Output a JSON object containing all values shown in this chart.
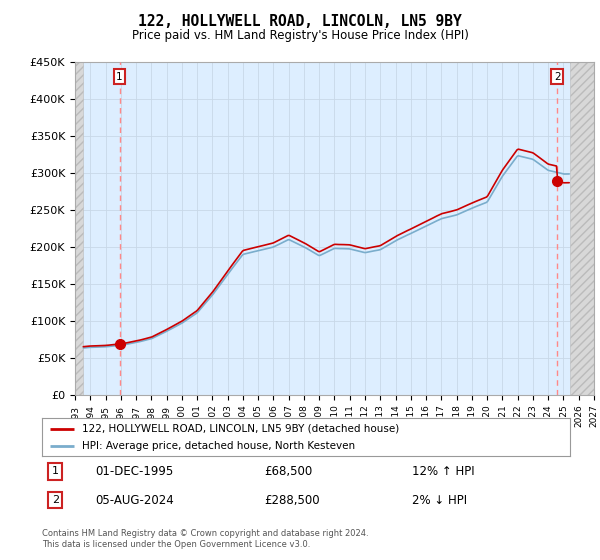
{
  "title": "122, HOLLYWELL ROAD, LINCOLN, LN5 9BY",
  "subtitle": "Price paid vs. HM Land Registry's House Price Index (HPI)",
  "ylim": [
    0,
    450000
  ],
  "xlim_min": 1993.0,
  "xlim_max": 2027.0,
  "hatch_left_end": 1993.5,
  "hatch_right_start": 2025.4,
  "sale1_date": 1995.917,
  "sale1_price": 68500,
  "sale2_date": 2024.583,
  "sale2_price": 288500,
  "legend_line1": "122, HOLLYWELL ROAD, LINCOLN, LN5 9BY (detached house)",
  "legend_line2": "HPI: Average price, detached house, North Kesteven",
  "annotation1_label": "01-DEC-1995",
  "annotation1_price": "£68,500",
  "annotation1_hpi": "12% ↑ HPI",
  "annotation2_label": "05-AUG-2024",
  "annotation2_price": "£288,500",
  "annotation2_hpi": "2% ↓ HPI",
  "footer": "Contains HM Land Registry data © Crown copyright and database right 2024.\nThis data is licensed under the Open Government Licence v3.0.",
  "line_color_red": "#cc0000",
  "line_color_blue": "#7aadcc",
  "background_plot": "#ddeeff",
  "dashed_line_color": "#ff8888"
}
